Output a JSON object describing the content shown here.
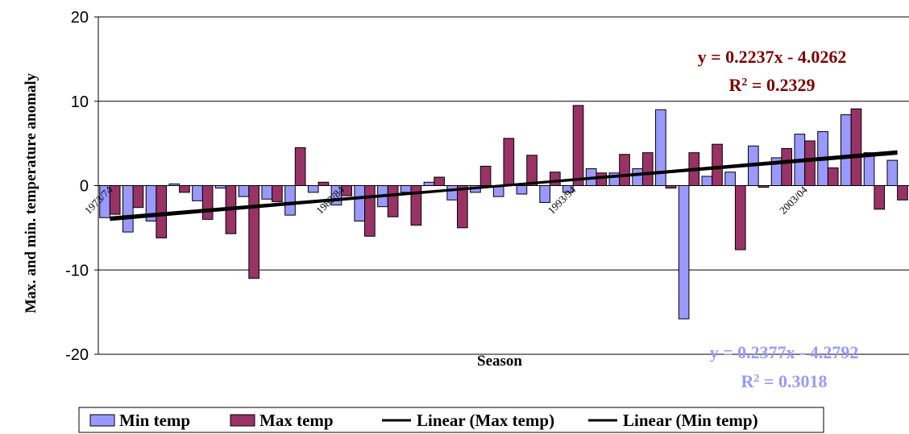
{
  "chart_data": {
    "type": "bar",
    "ylabel": "Max. and min. temperature anomaly",
    "xlabel": "Season",
    "ylim": [
      -20,
      20
    ],
    "yticks": [
      "-20",
      "-10",
      "0",
      "10",
      "20"
    ],
    "category_labels": [
      {
        "index": 0,
        "text": "1973/74"
      },
      {
        "index": 10,
        "text": "1983/84"
      },
      {
        "index": 20,
        "text": "1993/94"
      },
      {
        "index": 30,
        "text": "2003/04"
      }
    ],
    "series": [
      {
        "name": "Min temp",
        "color": "#9999ff",
        "values": [
          -3.8,
          -5.5,
          -4.2,
          0.2,
          -1.8,
          -0.3,
          -1.3,
          -1.6,
          -3.5,
          -0.8,
          -2.3,
          -4.2,
          -2.5,
          -0.8,
          0.4,
          -1.7,
          -0.8,
          -1.3,
          -1.0,
          -2.0,
          -0.8,
          2.0,
          1.5,
          2.0,
          9.0,
          -15.8,
          1.1,
          1.6,
          4.7,
          3.3,
          6.1,
          6.4,
          8.4,
          3.9,
          3.0
        ]
      },
      {
        "name": "Max temp",
        "color": "#993366",
        "values": [
          -3.4,
          -2.6,
          -6.2,
          -0.8,
          -4.0,
          -5.7,
          -11.0,
          -1.9,
          4.5,
          0.4,
          -1.2,
          -6.0,
          -3.7,
          -4.7,
          1.0,
          -5.0,
          2.3,
          5.6,
          3.6,
          1.6,
          9.5,
          1.5,
          3.7,
          3.9,
          -0.3,
          3.9,
          4.9,
          -7.6,
          -0.2,
          4.4,
          5.3,
          2.1,
          9.1,
          -2.8,
          -1.7
        ]
      }
    ],
    "trendlines": [
      {
        "name": "Linear (Max temp)",
        "slope": 0.2237,
        "intercept": -4.0262,
        "color": "#000000"
      },
      {
        "name": "Linear (Min temp)",
        "slope": 0.2377,
        "intercept": -4.2792,
        "color": "#000000"
      }
    ],
    "annotations": {
      "max_eq": "y = 0.2237x - 4.0262",
      "max_r2_prefix": "R",
      "max_r2_value": " = 0.2329",
      "max_color": "#800000",
      "min_eq": "y = 0.2377x - 4.2792",
      "min_r2_prefix": "R",
      "min_r2_value": " = 0.3018",
      "min_color": "#9999ff",
      "r2_sup": "2"
    },
    "legend": {
      "position": "bottom",
      "items": [
        "Min temp",
        "Max temp",
        "Linear (Max temp)",
        "Linear (Min temp)"
      ]
    }
  }
}
